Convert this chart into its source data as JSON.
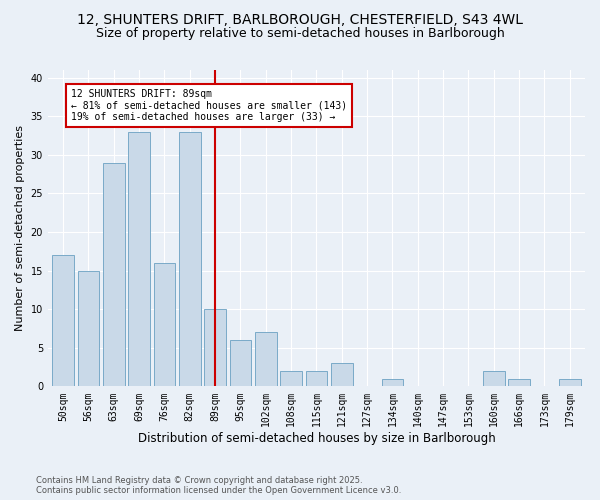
{
  "title_line1": "12, SHUNTERS DRIFT, BARLBOROUGH, CHESTERFIELD, S43 4WL",
  "title_line2": "Size of property relative to semi-detached houses in Barlborough",
  "xlabel": "Distribution of semi-detached houses by size in Barlborough",
  "ylabel": "Number of semi-detached properties",
  "categories": [
    "50sqm",
    "56sqm",
    "63sqm",
    "69sqm",
    "76sqm",
    "82sqm",
    "89sqm",
    "95sqm",
    "102sqm",
    "108sqm",
    "115sqm",
    "121sqm",
    "127sqm",
    "134sqm",
    "140sqm",
    "147sqm",
    "153sqm",
    "160sqm",
    "166sqm",
    "173sqm",
    "179sqm"
  ],
  "values": [
    17,
    15,
    29,
    33,
    16,
    33,
    10,
    6,
    7,
    2,
    2,
    3,
    0,
    1,
    0,
    0,
    0,
    2,
    1,
    0,
    1
  ],
  "bar_color": "#c9d9e8",
  "bar_edge_color": "#7aaac8",
  "highlight_index": 6,
  "highlight_line_color": "#cc0000",
  "annotation_text": "12 SHUNTERS DRIFT: 89sqm\n← 81% of semi-detached houses are smaller (143)\n19% of semi-detached houses are larger (33) →",
  "annotation_box_color": "#ffffff",
  "annotation_box_edge": "#cc0000",
  "ylim": [
    0,
    41
  ],
  "yticks": [
    0,
    5,
    10,
    15,
    20,
    25,
    30,
    35,
    40
  ],
  "background_color": "#eaf0f7",
  "plot_bg_color": "#eaf0f7",
  "footnote": "Contains HM Land Registry data © Crown copyright and database right 2025.\nContains public sector information licensed under the Open Government Licence v3.0.",
  "title_fontsize": 10,
  "subtitle_fontsize": 9,
  "xlabel_fontsize": 8.5,
  "ylabel_fontsize": 8,
  "tick_fontsize": 7,
  "annotation_fontsize": 7,
  "footnote_fontsize": 6
}
